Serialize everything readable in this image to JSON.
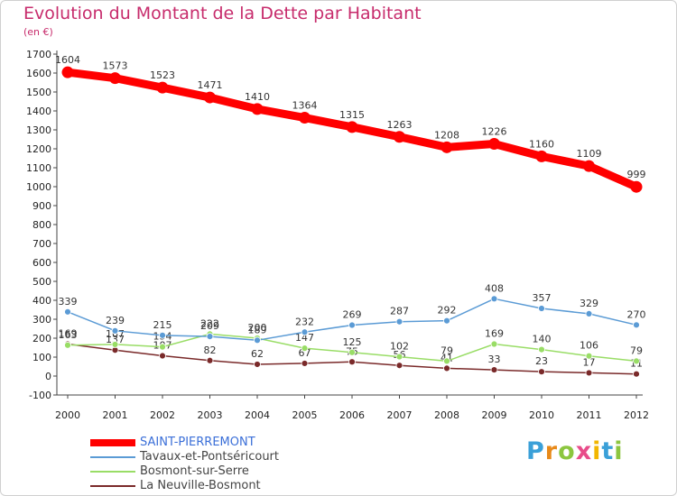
{
  "chart_data": {
    "type": "line",
    "title": "Evolution du Montant de la Dette par Habitant",
    "subtitle": "(en €)",
    "x": [
      "2000",
      "2001",
      "2002",
      "2003",
      "2004",
      "2005",
      "2006",
      "2007",
      "2008",
      "2009",
      "2010",
      "2011",
      "2012"
    ],
    "ylim": [
      -100,
      1700
    ],
    "yticks": [
      -100,
      0,
      100,
      200,
      300,
      400,
      500,
      600,
      700,
      800,
      900,
      1000,
      1100,
      1200,
      1300,
      1400,
      1500,
      1600,
      1700
    ],
    "grid": false,
    "legend_position": "bottom-left",
    "series": [
      {
        "name": "SAINT-PIERREMONT",
        "color": "#ff0000",
        "values": [
          1604,
          1573,
          1523,
          1471,
          1410,
          1364,
          1315,
          1263,
          1208,
          1226,
          1160,
          1109,
          999
        ]
      },
      {
        "name": "Tavaux-et-Pontséricourt",
        "color": "#5b9bd5",
        "values": [
          339,
          239,
          215,
          209,
          189,
          232,
          269,
          287,
          292,
          408,
          357,
          329,
          270
        ]
      },
      {
        "name": "Bosmont-sur-Serre",
        "color": "#99dd66",
        "values": [
          163,
          167,
          154,
          222,
          200,
          147,
          125,
          102,
          79,
          169,
          140,
          106,
          79
        ]
      },
      {
        "name": "La Neuville-Bosmont",
        "color": "#7a2a2a",
        "values": [
          169,
          137,
          107,
          82,
          62,
          67,
          75,
          56,
          41,
          33,
          23,
          17,
          11
        ]
      }
    ]
  },
  "logo": {
    "letters": [
      "P",
      "r",
      "o",
      "x",
      "i",
      "t",
      "i"
    ],
    "colors": [
      "#3aa0d8",
      "#e88a1a",
      "#8cc63f",
      "#e84c8a",
      "#f2b600",
      "#3aa0d8",
      "#8cc63f"
    ]
  }
}
